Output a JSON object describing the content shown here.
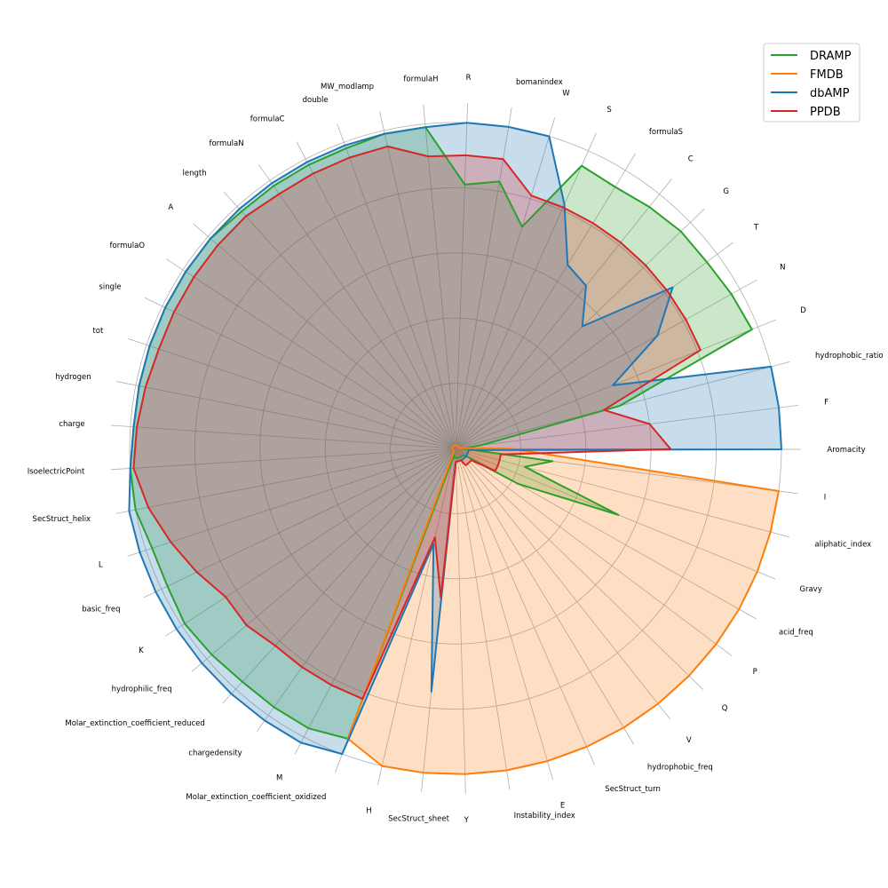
{
  "chart_data": {
    "type": "radar",
    "axes": [
      "R",
      "bomanindex",
      "W",
      "S",
      "formulaS",
      "C",
      "G",
      "T",
      "N",
      "D",
      "hydrophobic_ratio",
      "F",
      "Aromacity",
      "I",
      "aliphatic_index",
      "Gravy",
      "acid_freq",
      "P",
      "Q",
      "V",
      "hydrophobic_freq",
      "SecStruct_turn",
      "E",
      "Instability_index",
      "Y",
      "SecStruct_sheet",
      "H",
      "Molar_extinction_coefficient_oxidized",
      "M",
      "chargedensity",
      "Molar_extinction_coefficient_reduced",
      "hydrophilic_freq",
      "K",
      "basic_freq",
      "L",
      "SecStruct_helix",
      "IsoelectricPoint",
      "charge",
      "hydrogen",
      "tot",
      "single",
      "formulaO",
      "A",
      "length",
      "formulaN",
      "formulaC",
      "double",
      "MW_modlamp",
      "formulaH"
    ],
    "rlim": [
      0,
      5
    ],
    "grid": true,
    "legend_position": "top-right",
    "series": [
      {
        "name": "DRAMP",
        "color": "#2ca02c",
        "values": [
          4.05,
          4.15,
          3.55,
          4.75,
          4.7,
          4.75,
          4.8,
          4.8,
          4.85,
          4.9,
          2.6,
          0.4,
          0.1,
          1.5,
          1.1,
          2.7,
          1.1,
          0.2,
          0.15,
          0.15,
          0.15,
          0.15,
          0.15,
          0.15,
          0.15,
          0.15,
          0.1,
          4.75,
          4.85,
          4.85,
          4.85,
          4.9,
          4.95,
          4.9,
          4.9,
          5.0,
          5.0,
          4.95,
          4.95,
          4.95,
          4.95,
          4.95,
          4.95,
          4.9,
          4.9,
          4.9,
          4.9,
          4.95,
          4.95
        ]
      },
      {
        "name": "FMDB",
        "color": "#ff7f0e",
        "values": [
          0.05,
          0.05,
          0.05,
          0.05,
          0.05,
          0.05,
          0.05,
          0.05,
          0.05,
          0.05,
          0.05,
          0.05,
          0.85,
          5.0,
          5.0,
          5.0,
          5.0,
          5.0,
          5.0,
          5.0,
          5.0,
          5.0,
          5.0,
          5.0,
          5.0,
          5.0,
          5.0,
          4.75,
          0.05,
          0.05,
          0.05,
          0.05,
          0.05,
          0.05,
          0.05,
          0.05,
          0.05,
          0.05,
          0.05,
          0.05,
          0.05,
          0.05,
          0.05,
          0.05,
          0.05,
          0.05,
          0.05,
          0.05,
          0.05
        ]
      },
      {
        "name": "dbAMP",
        "color": "#1f77b4",
        "values": [
          5.0,
          5.0,
          5.0,
          4.1,
          3.3,
          3.2,
          2.7,
          4.15,
          3.55,
          2.6,
          5.0,
          5.0,
          5.0,
          0.2,
          0.2,
          0.2,
          0.2,
          0.2,
          0.2,
          0.2,
          0.2,
          0.2,
          0.2,
          0.2,
          0.2,
          3.75,
          1.5,
          5.0,
          5.1,
          5.1,
          5.1,
          5.1,
          5.1,
          5.1,
          5.1,
          5.1,
          5.0,
          4.95,
          4.95,
          4.95,
          4.95,
          4.95,
          4.95,
          4.95,
          4.95,
          4.95,
          4.95,
          4.95,
          4.95
        ]
      },
      {
        "name": "PPDB",
        "color": "#d62728",
        "values": [
          4.5,
          4.5,
          4.05,
          4.05,
          4.05,
          4.05,
          4.05,
          4.05,
          4.05,
          4.05,
          2.35,
          3.0,
          3.3,
          0.7,
          0.7,
          0.7,
          0.7,
          0.3,
          0.3,
          0.3,
          0.3,
          0.2,
          0.2,
          0.2,
          0.2,
          2.3,
          1.4,
          4.1,
          4.1,
          4.1,
          4.1,
          4.2,
          4.2,
          4.4,
          4.6,
          4.8,
          4.95,
          4.9,
          4.85,
          4.8,
          4.8,
          4.8,
          4.8,
          4.8,
          4.75,
          4.75,
          4.75,
          4.75,
          4.5
        ]
      }
    ]
  }
}
